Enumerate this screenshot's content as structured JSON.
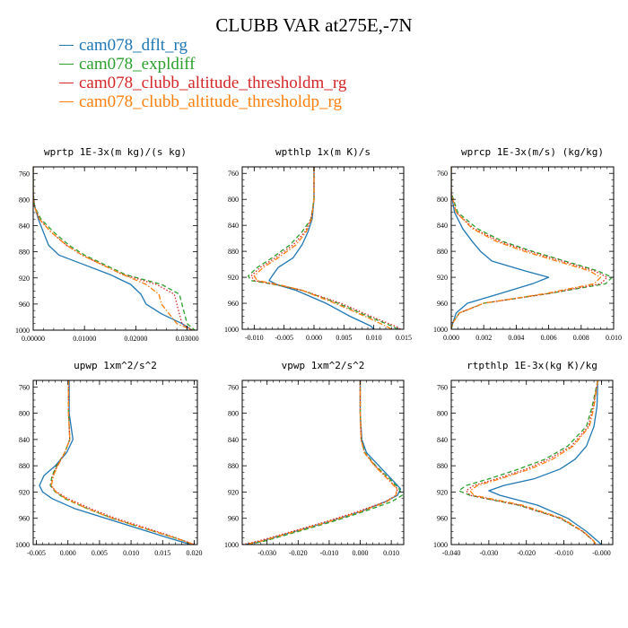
{
  "title": "CLUBB VAR at275E,-7N",
  "legend": [
    {
      "name": "cam078_dflt_rg",
      "color": "#1f77b4",
      "dash": "solid"
    },
    {
      "name": "cam078_expldiff",
      "color": "#2ca02c",
      "dash": "dashed"
    },
    {
      "name": "cam078_clubb_altitude_thresholdm_rg",
      "color": "#d62728",
      "dash": "dotted"
    },
    {
      "name": "cam078_clubb_altitude_thresholdp_rg",
      "color": "#ff7f0e",
      "dash": "dashdot"
    }
  ],
  "chart_data": [
    {
      "type": "line",
      "title": "wprtp  1E-3x(m kg)/(s kg)",
      "xlim": [
        0,
        0.032
      ],
      "ylim": [
        1000,
        750
      ],
      "xticks": [
        "0.00000",
        "0.01000",
        "0.02000",
        "0.03000"
      ],
      "xtick_values": [
        0,
        0.01,
        0.02,
        0.03
      ],
      "yticks": [
        "760",
        "800",
        "840",
        "880",
        "920",
        "960",
        "1000"
      ],
      "ytick_values": [
        760,
        800,
        840,
        880,
        920,
        960,
        1000
      ],
      "y": [
        750,
        790,
        810,
        830,
        850,
        870,
        885,
        900,
        915,
        930,
        945,
        960,
        975,
        990,
        1000
      ],
      "series": [
        {
          "name": "cam078_dflt_rg",
          "x": [
            0,
            0,
            0.0003,
            0.001,
            0.002,
            0.003,
            0.005,
            0.01,
            0.015,
            0.019,
            0.021,
            0.022,
            0.025,
            0.029,
            0.031
          ]
        },
        {
          "name": "cam078_expldiff",
          "x": [
            0,
            0,
            0.0002,
            0.0015,
            0.004,
            0.007,
            0.01,
            0.014,
            0.018,
            0.025,
            0.0285,
            0.029,
            0.0295,
            0.03,
            0.0315
          ]
        },
        {
          "name": "cam078_clubb_altitude_thresholdm_rg",
          "x": [
            0,
            0,
            0.0002,
            0.0012,
            0.0035,
            0.0065,
            0.0095,
            0.0135,
            0.0175,
            0.024,
            0.0275,
            0.028,
            0.0285,
            0.029,
            0.031
          ]
        },
        {
          "name": "cam078_clubb_altitude_thresholdp_rg",
          "x": [
            0,
            0,
            0.0002,
            0.0012,
            0.0035,
            0.0065,
            0.0095,
            0.0135,
            0.0175,
            0.022,
            0.0245,
            0.025,
            0.0265,
            0.028,
            0.031
          ]
        }
      ]
    },
    {
      "type": "line",
      "title": "wpthlp  1x(m K)/s",
      "xlim": [
        -0.012,
        0.015
      ],
      "ylim": [
        1000,
        750
      ],
      "xticks": [
        "-0.010",
        "-0.005",
        "0.000",
        "0.005",
        "0.010",
        "0.015"
      ],
      "xtick_values": [
        -0.01,
        -0.005,
        0.0,
        0.005,
        0.01,
        0.015
      ],
      "yticks": [
        "760",
        "800",
        "840",
        "880",
        "920",
        "960",
        "1000"
      ],
      "ytick_values": [
        760,
        800,
        840,
        880,
        920,
        960,
        1000
      ],
      "y": [
        750,
        800,
        830,
        850,
        870,
        890,
        905,
        918,
        925,
        932,
        940,
        960,
        980,
        995,
        1000
      ],
      "series": [
        {
          "name": "cam078_dflt_rg",
          "x": [
            0,
            0,
            -0.0003,
            -0.001,
            -0.002,
            -0.0035,
            -0.006,
            -0.007,
            -0.0075,
            -0.006,
            -0.003,
            0.002,
            0.006,
            0.0095,
            0.01
          ]
        },
        {
          "name": "cam078_expldiff",
          "x": [
            0,
            0,
            -0.0005,
            -0.002,
            -0.004,
            -0.007,
            -0.0095,
            -0.011,
            -0.0105,
            -0.006,
            -0.002,
            0.004,
            0.009,
            0.013,
            0.014
          ]
        },
        {
          "name": "cam078_clubb_altitude_thresholdm_rg",
          "x": [
            0,
            0,
            -0.0005,
            -0.0015,
            -0.0035,
            -0.0065,
            -0.009,
            -0.0105,
            -0.01,
            -0.006,
            -0.002,
            0.0045,
            0.0095,
            0.0135,
            0.0145
          ]
        },
        {
          "name": "cam078_clubb_altitude_thresholdp_rg",
          "x": [
            0,
            0,
            -0.0004,
            -0.0013,
            -0.003,
            -0.006,
            -0.0085,
            -0.01,
            -0.0095,
            -0.0055,
            -0.002,
            0.0035,
            0.0085,
            0.012,
            0.013
          ]
        }
      ]
    },
    {
      "type": "line",
      "title": "wprcp  1E-3x(m/s) (kg/kg)",
      "xlim": [
        0,
        0.01
      ],
      "ylim": [
        1000,
        750
      ],
      "xticks": [
        "0.000",
        "0.002",
        "0.004",
        "0.006",
        "0.008",
        "0.010"
      ],
      "xtick_values": [
        0,
        0.002,
        0.004,
        0.006,
        0.008,
        0.01
      ],
      "yticks": [
        "760",
        "800",
        "840",
        "880",
        "920",
        "960",
        "1000"
      ],
      "ytick_values": [
        760,
        800,
        840,
        880,
        920,
        960,
        1000
      ],
      "y": [
        750,
        790,
        820,
        845,
        865,
        880,
        895,
        910,
        920,
        930,
        945,
        960,
        975,
        990,
        1000
      ],
      "series": [
        {
          "name": "cam078_dflt_rg",
          "x": [
            0,
            0,
            0.0002,
            0.0007,
            0.0013,
            0.0018,
            0.0025,
            0.0045,
            0.006,
            0.005,
            0.003,
            0.001,
            0.0003,
            0.0001,
            0
          ]
        },
        {
          "name": "cam078_expldiff",
          "x": [
            0,
            0,
            0.0004,
            0.0016,
            0.0032,
            0.005,
            0.007,
            0.009,
            0.0099,
            0.0095,
            0.006,
            0.002,
            0.0005,
            0.0001,
            0
          ]
        },
        {
          "name": "cam078_clubb_altitude_thresholdm_rg",
          "x": [
            0,
            0,
            0.0003,
            0.0014,
            0.003,
            0.0048,
            0.0068,
            0.0088,
            0.0096,
            0.0092,
            0.006,
            0.002,
            0.0005,
            0.0001,
            0
          ]
        },
        {
          "name": "cam078_clubb_altitude_thresholdp_rg",
          "x": [
            0,
            0,
            0.0003,
            0.0013,
            0.0028,
            0.0045,
            0.0065,
            0.0085,
            0.0092,
            0.0088,
            0.0058,
            0.002,
            0.0005,
            0.0001,
            0
          ]
        }
      ]
    },
    {
      "type": "line",
      "title": "upwp  1xm^2/s^2",
      "xlim": [
        -0.0055,
        0.0205
      ],
      "ylim": [
        1000,
        750
      ],
      "xticks": [
        "-0.005",
        "0.000",
        "0.005",
        "0.010",
        "0.015",
        "0.020"
      ],
      "xtick_values": [
        -0.005,
        0,
        0.005,
        0.01,
        0.015,
        0.02
      ],
      "yticks": [
        "760",
        "800",
        "840",
        "880",
        "920",
        "960",
        "1000"
      ],
      "ytick_values": [
        760,
        800,
        840,
        880,
        920,
        960,
        1000
      ],
      "y": [
        750,
        800,
        840,
        860,
        880,
        895,
        910,
        920,
        930,
        945,
        960,
        975,
        990,
        1000
      ],
      "series": [
        {
          "name": "cam078_dflt_rg",
          "x": [
            0.0002,
            0.0002,
            0.0008,
            -0.0002,
            -0.002,
            -0.0038,
            -0.0045,
            -0.004,
            -0.0025,
            0.001,
            0.006,
            0.011,
            0.016,
            0.0195
          ]
        },
        {
          "name": "cam078_expldiff",
          "x": [
            0.0001,
            0.0001,
            0.0003,
            -0.0005,
            -0.0018,
            -0.0025,
            -0.0028,
            -0.002,
            -0.0005,
            0.003,
            0.007,
            0.012,
            0.017,
            0.02
          ]
        },
        {
          "name": "cam078_clubb_altitude_thresholdm_rg",
          "x": [
            0.0001,
            0.0001,
            0.0003,
            -0.0005,
            -0.0017,
            -0.0024,
            -0.0027,
            -0.0018,
            0.0,
            0.0035,
            0.0075,
            0.0125,
            0.0172,
            0.02
          ]
        },
        {
          "name": "cam078_clubb_altitude_thresholdp_rg",
          "x": [
            0.0001,
            0.0001,
            0.0003,
            -0.0005,
            -0.0016,
            -0.0023,
            -0.0026,
            -0.0019,
            -0.0003,
            0.003,
            0.007,
            0.012,
            0.017,
            0.02
          ]
        }
      ]
    },
    {
      "type": "line",
      "title": "vpwp  1xm^2/s^2",
      "xlim": [
        -0.038,
        0.014
      ],
      "ylim": [
        1000,
        750
      ],
      "xticks": [
        "-0.030",
        "-0.020",
        "-0.010",
        "0.000",
        "0.010"
      ],
      "xtick_values": [
        -0.03,
        -0.02,
        -0.01,
        0,
        0.01
      ],
      "yticks": [
        "760",
        "800",
        "840",
        "880",
        "920",
        "960",
        "1000"
      ],
      "ytick_values": [
        760,
        800,
        840,
        880,
        920,
        960,
        1000
      ],
      "y": [
        750,
        800,
        840,
        860,
        880,
        900,
        915,
        925,
        935,
        950,
        965,
        980,
        995,
        1000
      ],
      "series": [
        {
          "name": "cam078_dflt_rg",
          "x": [
            0,
            0,
            0.0005,
            0.002,
            0.006,
            0.01,
            0.013,
            0.012,
            0.008,
            0.0,
            -0.01,
            -0.021,
            -0.032,
            -0.037
          ]
        },
        {
          "name": "cam078_expldiff",
          "x": [
            0,
            0,
            0.0003,
            0.0015,
            0.005,
            0.0095,
            0.0125,
            0.0135,
            0.01,
            0.001,
            -0.009,
            -0.02,
            -0.031,
            -0.036
          ]
        },
        {
          "name": "cam078_clubb_altitude_thresholdm_rg",
          "x": [
            0,
            0,
            0.0003,
            0.0014,
            0.0048,
            0.009,
            0.012,
            0.0115,
            0.008,
            -0.001,
            -0.011,
            -0.022,
            -0.033,
            -0.038
          ]
        },
        {
          "name": "cam078_clubb_altitude_thresholdp_rg",
          "x": [
            0,
            0,
            0.0003,
            0.0013,
            0.0046,
            0.0088,
            0.0118,
            0.0115,
            0.0085,
            0.0,
            -0.01,
            -0.021,
            -0.032,
            -0.037
          ]
        }
      ]
    },
    {
      "type": "line",
      "title": "rtpthlp  1E-3x(kg K)/kg",
      "xlim": [
        -0.04,
        0.003
      ],
      "ylim": [
        1000,
        750
      ],
      "xticks": [
        "-0.040",
        "-0.030",
        "-0.020",
        "-0.010",
        "-0.000"
      ],
      "xtick_values": [
        -0.04,
        -0.03,
        -0.02,
        -0.01,
        0.0
      ],
      "yticks": [
        "760",
        "800",
        "840",
        "880",
        "920",
        "960",
        "1000"
      ],
      "ytick_values": [
        760,
        800,
        840,
        880,
        920,
        960,
        1000
      ],
      "y": [
        750,
        790,
        820,
        850,
        870,
        885,
        900,
        910,
        918,
        925,
        940,
        960,
        980,
        995,
        1000
      ],
      "series": [
        {
          "name": "cam078_dflt_rg",
          "x": [
            -0.001,
            -0.0012,
            -0.002,
            -0.004,
            -0.007,
            -0.011,
            -0.018,
            -0.026,
            -0.03,
            -0.027,
            -0.017,
            -0.009,
            -0.004,
            -0.001,
            0.0
          ]
        },
        {
          "name": "cam078_expldiff",
          "x": [
            -0.001,
            -0.0025,
            -0.004,
            -0.009,
            -0.015,
            -0.022,
            -0.03,
            -0.036,
            -0.038,
            -0.035,
            -0.022,
            -0.011,
            -0.005,
            -0.002,
            -0.0015
          ]
        },
        {
          "name": "cam078_clubb_altitude_thresholdm_rg",
          "x": [
            -0.001,
            -0.0022,
            -0.0035,
            -0.008,
            -0.014,
            -0.02,
            -0.028,
            -0.034,
            -0.036,
            -0.035,
            -0.022,
            -0.011,
            -0.005,
            -0.002,
            -0.0015
          ]
        },
        {
          "name": "cam078_clubb_altitude_thresholdp_rg",
          "x": [
            -0.001,
            -0.002,
            -0.0032,
            -0.0075,
            -0.013,
            -0.019,
            -0.027,
            -0.033,
            -0.035,
            -0.034,
            -0.021,
            -0.0105,
            -0.0048,
            -0.002,
            -0.0015
          ]
        }
      ]
    }
  ]
}
